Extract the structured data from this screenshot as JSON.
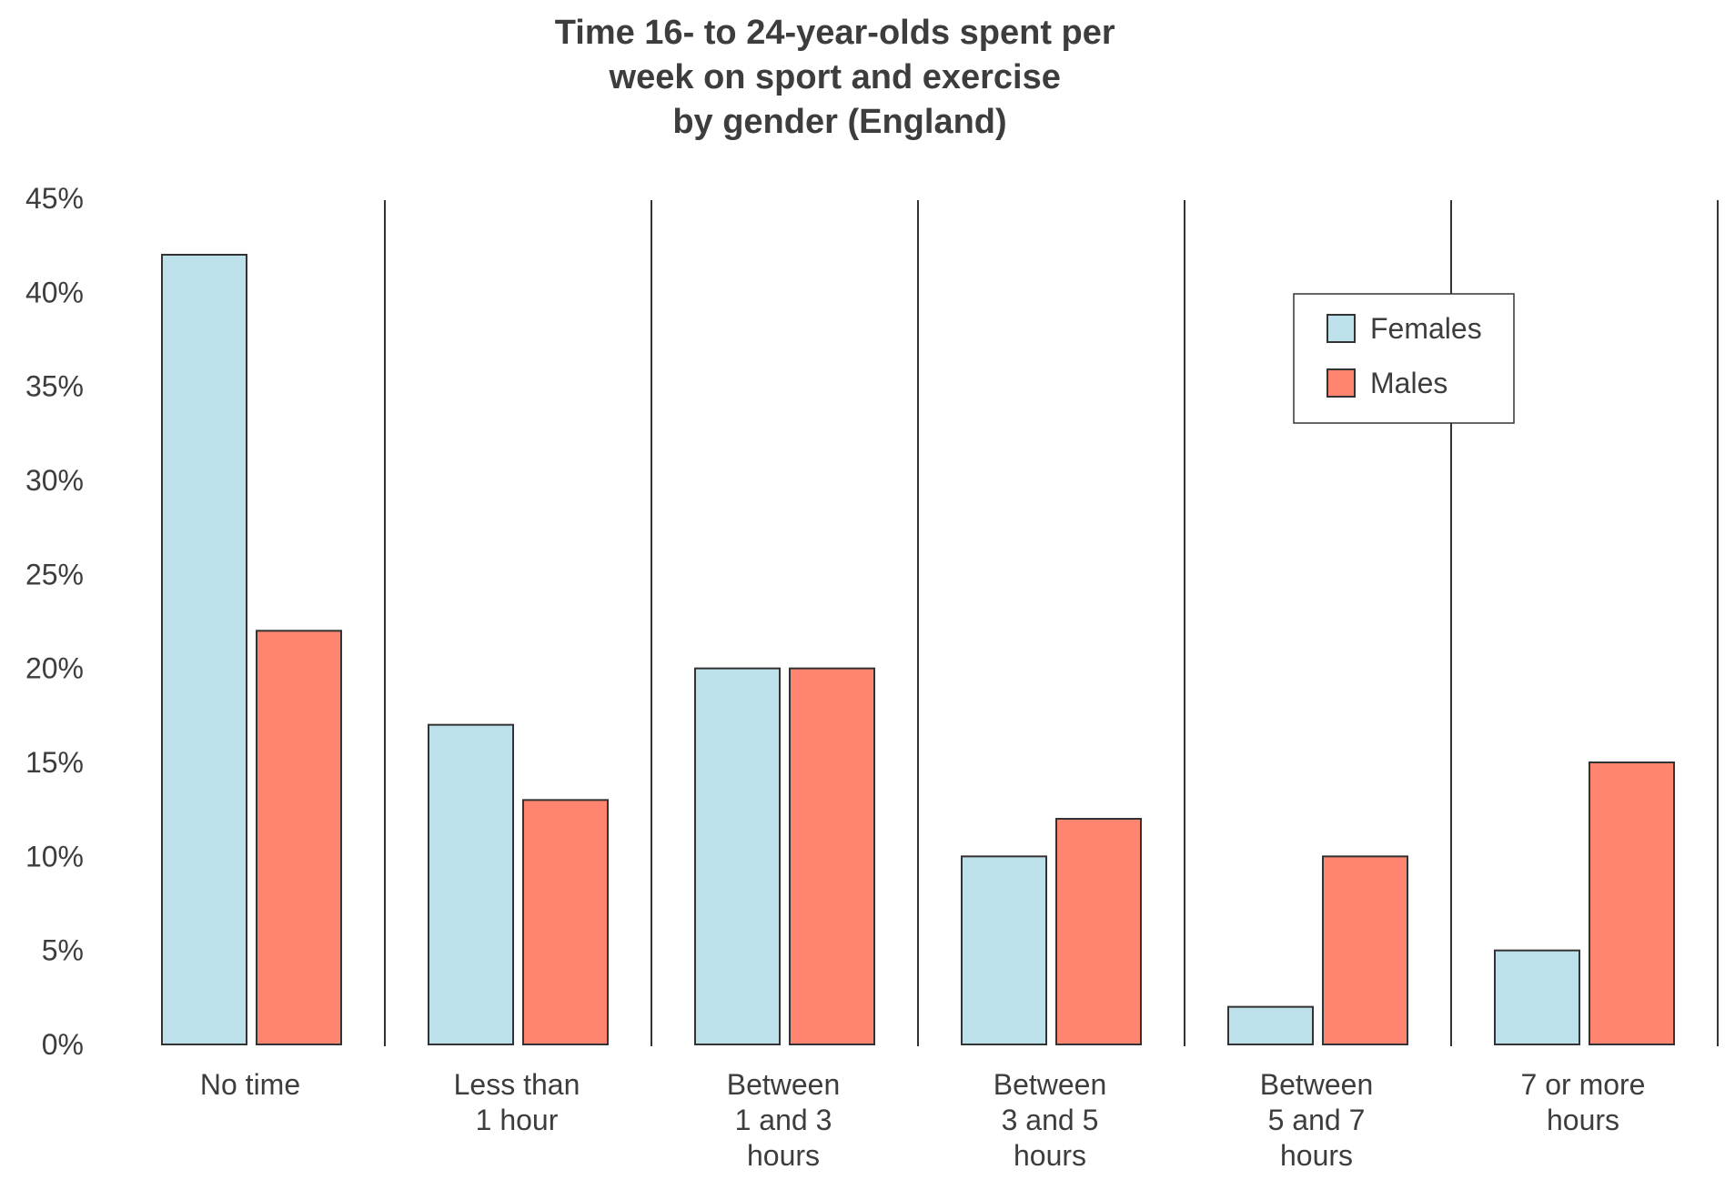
{
  "chart_data": {
    "type": "bar",
    "title": "Time 16- to 24-year-olds spent per week on sport and exercise by gender (England)",
    "title_lines": [
      "Time 16- to 24-year-olds spent per",
      "week on sport and exercise",
      "by gender (England)"
    ],
    "categories": [
      "No time",
      "Less than 1 hour",
      "Between 1 and 3 hours",
      "Between 3 and 5 hours",
      "Between 5 and 7 hours",
      "7 or more hours"
    ],
    "category_lines": [
      [
        "No time"
      ],
      [
        "Less than",
        "1 hour"
      ],
      [
        "Between",
        "1 and 3",
        "hours"
      ],
      [
        "Between",
        "3 and 5",
        "hours"
      ],
      [
        "Between",
        "5 and 7",
        "hours"
      ],
      [
        "7 or more",
        "hours"
      ]
    ],
    "series": [
      {
        "name": "Females",
        "color": "#bde1ea",
        "values": [
          42,
          17,
          20,
          10,
          2,
          5
        ]
      },
      {
        "name": "Males",
        "color": "#ff8570",
        "values": [
          22,
          13,
          20,
          12,
          10,
          15
        ]
      }
    ],
    "ylim": [
      0,
      45
    ],
    "yticks": [
      0,
      5,
      10,
      15,
      20,
      25,
      30,
      35,
      40,
      45
    ],
    "ytick_labels": [
      "0%",
      "5%",
      "10%",
      "15%",
      "20%",
      "25%",
      "30%",
      "35%",
      "40%",
      "45%"
    ],
    "xlabel": "",
    "ylabel": "",
    "grid": false,
    "legend_position": "top-right",
    "edge_color": "#333333",
    "text_color": "#3d3d3d"
  }
}
